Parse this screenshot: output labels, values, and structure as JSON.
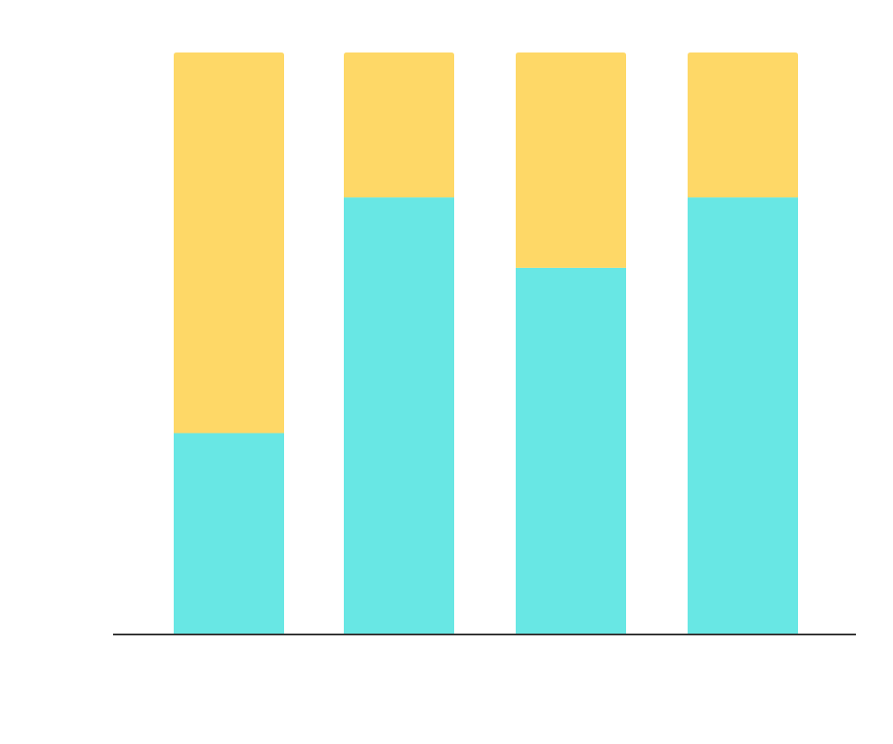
{
  "chart_data": {
    "type": "bar",
    "stacked": true,
    "normalized": true,
    "categories": [
      "",
      "",
      "",
      ""
    ],
    "ylim": [
      0,
      100
    ],
    "grid": false,
    "series": [
      {
        "values": [
          34.6,
          75.1,
          63.0,
          75.1
        ],
        "color": "#68E7E4"
      },
      {
        "values": [
          65.4,
          24.9,
          37.0,
          24.9
        ],
        "color": "#FED867"
      }
    ],
    "axis_color": "#333333",
    "xlabel": "",
    "ylabel": "",
    "title": ""
  }
}
